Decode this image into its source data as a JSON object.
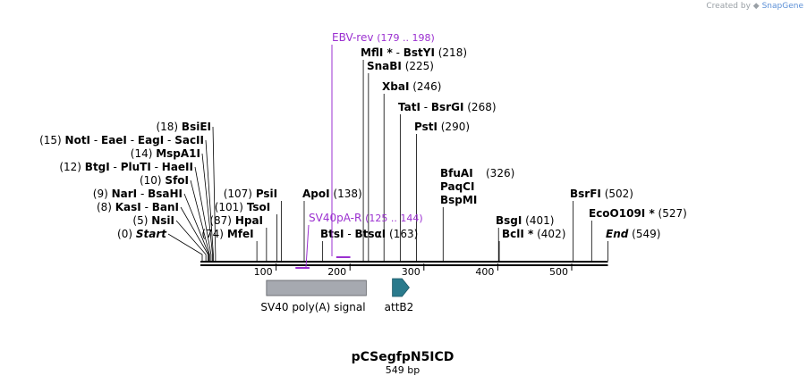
{
  "credit": {
    "prefix": "Created by",
    "brand": "SnapGene",
    "logo_icon": "snapgene-logo-icon"
  },
  "map": {
    "title": "pCSegfpN5ICD",
    "length_label": "549 bp",
    "length": 549,
    "ruler_ticks": [
      "100",
      "200",
      "300",
      "400",
      "500"
    ],
    "sites_left": [
      {
        "pos": "(0)",
        "names": [
          "Start"
        ],
        "italic": true,
        "bp": 0
      },
      {
        "pos": "(5)",
        "names": [
          "NsiI"
        ],
        "bp": 5
      },
      {
        "pos": "(8)",
        "names": [
          "KasI",
          "BanI"
        ],
        "bp": 8
      },
      {
        "pos": "(9)",
        "names": [
          "NarI",
          "BsaHI"
        ],
        "bp": 9
      },
      {
        "pos": "(10)",
        "names": [
          "SfoI"
        ],
        "bp": 10
      },
      {
        "pos": "(12)",
        "names": [
          "BtgI",
          "PluTI",
          "HaeII"
        ],
        "bp": 12
      },
      {
        "pos": "(14)",
        "names": [
          "MspA1I"
        ],
        "bp": 14
      },
      {
        "pos": "(15)",
        "names": [
          "NotI",
          "EaeI",
          "EagI",
          "SacII"
        ],
        "bp": 15
      },
      {
        "pos": "(18)",
        "names": [
          "BsiEI"
        ],
        "bp": 18
      }
    ],
    "sites_mid": [
      {
        "pos": "(74)",
        "names": [
          "MfeI"
        ],
        "bp": 74
      },
      {
        "pos": "(87)",
        "names": [
          "HpaI"
        ],
        "bp": 87
      },
      {
        "pos": "(101)",
        "names": [
          "TsoI"
        ],
        "bp": 101
      },
      {
        "pos": "(107)",
        "names": [
          "PsiI"
        ],
        "bp": 107
      }
    ],
    "sites_right": [
      {
        "names": [
          "ApoI"
        ],
        "pos": "(138)",
        "bp": 138
      },
      {
        "names": [
          "BtsI",
          "BtsαI"
        ],
        "pos": "(163)",
        "bp": 163
      },
      {
        "names": [
          "MflI *",
          "BstYI"
        ],
        "pos": "(218)",
        "bp": 218
      },
      {
        "names": [
          "SnaBI"
        ],
        "pos": "(225)",
        "bp": 225
      },
      {
        "names": [
          "XbaI"
        ],
        "pos": "(246)",
        "bp": 246
      },
      {
        "names": [
          "TatI",
          "BsrGI"
        ],
        "pos": "(268)",
        "bp": 268
      },
      {
        "names": [
          "PstI"
        ],
        "pos": "(290)",
        "bp": 290
      },
      {
        "names": [
          "BfuAI",
          "PaqCI",
          "BspMI"
        ],
        "pos": "(326)",
        "bp": 326
      },
      {
        "names": [
          "BsgI"
        ],
        "pos": "(401)",
        "bp": 401
      },
      {
        "names": [
          "BclI *"
        ],
        "pos": "(402)",
        "bp": 402
      },
      {
        "names": [
          "BsrFI"
        ],
        "pos": "(502)",
        "bp": 502
      },
      {
        "names": [
          "EcoO109I *"
        ],
        "pos": "(527)",
        "bp": 527
      },
      {
        "names": [
          "End"
        ],
        "pos": "(549)",
        "italic": true,
        "bp": 549
      }
    ],
    "primers": [
      {
        "name": "EBV-rev",
        "range": "(179 .. 198)",
        "start": 179,
        "end": 198
      },
      {
        "name": "SV40pA-R",
        "range": "(125 .. 144)",
        "start": 125,
        "end": 144
      }
    ],
    "features": [
      {
        "name": "SV40 poly(A) signal",
        "type": "polyA_signal",
        "color": "#a6a9b0",
        "start": 87,
        "end": 222
      },
      {
        "name": "attB2",
        "type": "recombination_site",
        "color": "#2a7a8c",
        "start": 261,
        "end": 285
      }
    ],
    "colors": {
      "primer": "#9b30d0",
      "backbone": "#000000"
    }
  }
}
